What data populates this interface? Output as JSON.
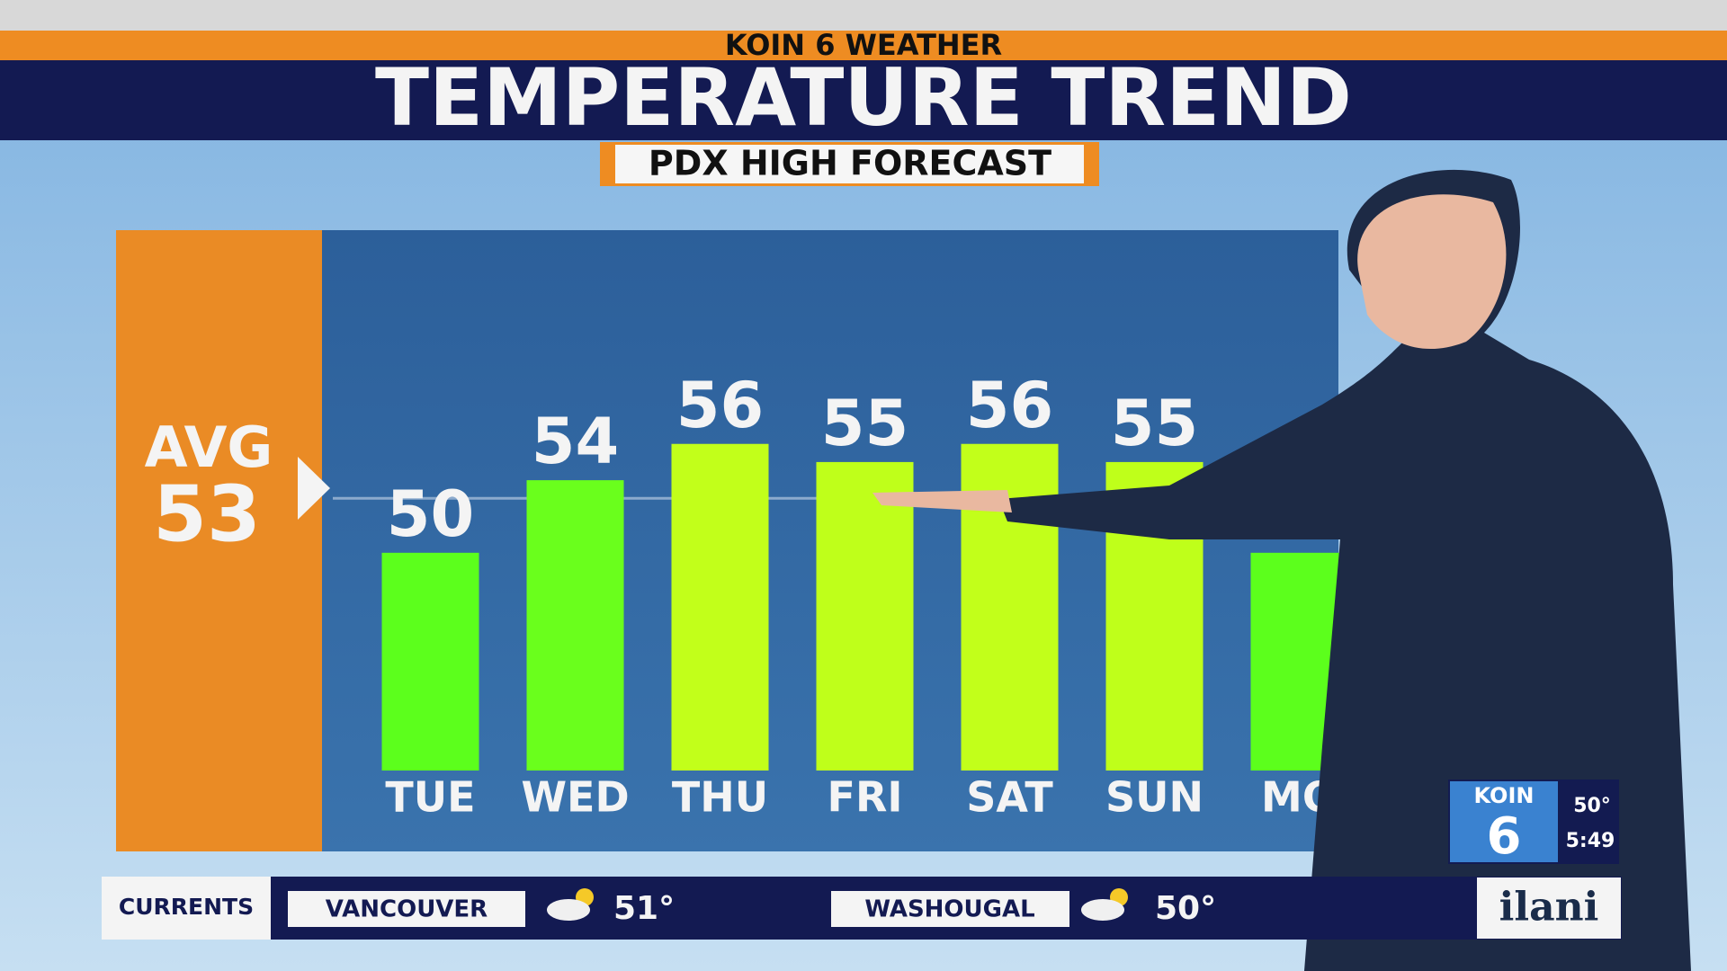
{
  "header": {
    "brand": "KOIN 6 WEATHER"
  },
  "chart_data": {
    "type": "bar",
    "title": "TEMPERATURE TREND",
    "subtitle": "PDX HIGH FORECAST",
    "categories": [
      "TUE",
      "WED",
      "THU",
      "FRI",
      "SAT",
      "SUN",
      "MO"
    ],
    "values": [
      50,
      54,
      56,
      55,
      56,
      55,
      50
    ],
    "colors": [
      "#5cff1c",
      "#6aff1c",
      "#c2ff1a",
      "#bfff1a",
      "#c2ff1a",
      "#bfff1a",
      "#5cff1c"
    ],
    "ylim": [
      38,
      60
    ],
    "average_label": "AVG",
    "average": 53
  },
  "ticker": {
    "label": "CURRENTS",
    "stations": [
      {
        "city": "VANCOUVER",
        "temp": "51°"
      },
      {
        "city": "WASHOUGAL",
        "temp": "50°"
      }
    ],
    "sponsor": "ilani"
  },
  "bug": {
    "logo": "KOIN",
    "channel": "6",
    "temp": "50°",
    "time": "5:49"
  }
}
